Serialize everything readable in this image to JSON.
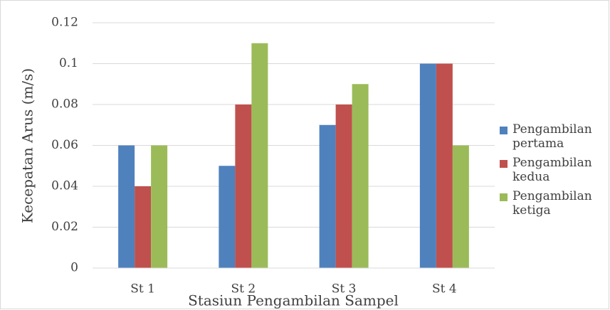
{
  "chart_data": {
    "type": "bar",
    "y_label": "Kecepatan Arus (m/s)",
    "x_label": "Stasiun Pengambilan Sampel",
    "categories": [
      "St 1",
      "St 2",
      "St 3",
      "St 4"
    ],
    "series": [
      {
        "name": "Pengambilan pertama",
        "color": "#4f81bd",
        "values": [
          0.06,
          0.05,
          0.07,
          0.1
        ]
      },
      {
        "name": "Pengambilan kedua",
        "color": "#c0504d",
        "values": [
          0.04,
          0.08,
          0.08,
          0.1
        ]
      },
      {
        "name": "Pengambilan ketiga",
        "color": "#9bbb59",
        "values": [
          0.06,
          0.11,
          0.09,
          0.06
        ]
      }
    ],
    "ylim": [
      0,
      0.12
    ],
    "yticks": [
      0,
      0.02,
      0.04,
      0.06,
      0.08,
      0.1,
      0.12
    ],
    "grid": true,
    "legend": "right"
  }
}
